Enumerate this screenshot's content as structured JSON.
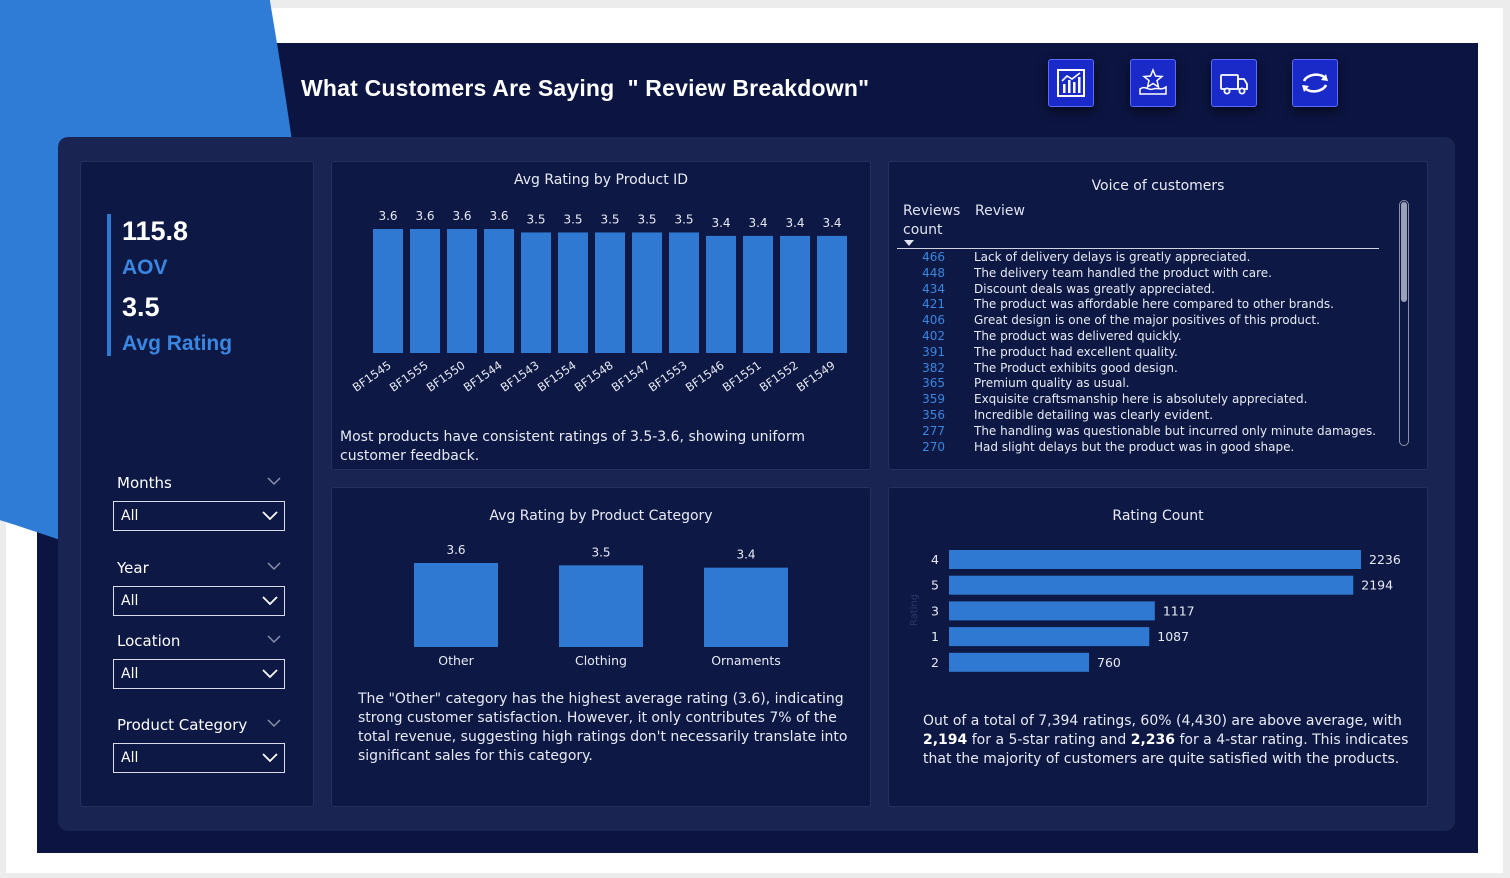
{
  "header": {
    "title": "What Customers Are Saying  \" Review Breakdown\"",
    "nav_icons": [
      "chart-icon",
      "rating-stars-icon",
      "delivery-truck-icon",
      "refresh-icon"
    ]
  },
  "colors": {
    "background": "#0c1541",
    "card": "#0d1844",
    "bar": "#2f79d3",
    "accent": "#3a86e0"
  },
  "kpis": {
    "aov_value": "115.8",
    "aov_label": "AOV",
    "rating_value": "3.5",
    "rating_label": "Avg Rating"
  },
  "slicers": [
    {
      "label": "Months",
      "value": "All"
    },
    {
      "label": "Year",
      "value": "All"
    },
    {
      "label": "Location",
      "value": "All"
    },
    {
      "label": "Product Category",
      "value": "All"
    }
  ],
  "chart_data": [
    {
      "type": "bar",
      "title": "Avg Rating by Product ID",
      "categories": [
        "BF1545",
        "BF1555",
        "BF1550",
        "BF1544",
        "BF1543",
        "BF1554",
        "BF1548",
        "BF1547",
        "BF1553",
        "BF1546",
        "BF1551",
        "BF1552",
        "BF1549"
      ],
      "values": [
        3.6,
        3.6,
        3.6,
        3.6,
        3.5,
        3.5,
        3.5,
        3.5,
        3.5,
        3.4,
        3.4,
        3.4,
        3.4
      ],
      "value_labels": [
        "3.6",
        "3.6",
        "3.6",
        "3.6",
        "3.5",
        "3.5",
        "3.5",
        "3.5",
        "3.5",
        "3.4",
        "3.4",
        "3.4",
        "3.4"
      ],
      "grid": false
    },
    {
      "type": "bar",
      "title": "Avg Rating by Product Category",
      "categories": [
        "Other",
        "Clothing",
        "Ornaments"
      ],
      "values": [
        3.6,
        3.5,
        3.4
      ],
      "value_labels": [
        "3.6",
        "3.5",
        "3.4"
      ],
      "grid": false
    },
    {
      "type": "bar",
      "orientation": "horizontal",
      "title": "Rating Count",
      "categories": [
        "4",
        "5",
        "3",
        "1",
        "2"
      ],
      "values": [
        2236,
        2194,
        1117,
        1087,
        760
      ],
      "value_labels": [
        "2236",
        "2194",
        "1117",
        "1087",
        "760"
      ],
      "ylabel": "Rating",
      "grid": false
    }
  ],
  "insights": {
    "product_id": "Most products have consistent ratings of 3.5-3.6, showing uniform customer feedback.",
    "category": "The \"Other\" category has the highest average rating (3.6), indicating strong customer satisfaction. However, it only contributes 7% of the total revenue, suggesting high ratings don't necessarily translate into significant sales for this category.",
    "rating_part1": "Out of a total of 7,394 ratings, 60% (4,430) are above average, with ",
    "rating_bold1": "2,194",
    "rating_part2": " for a 5-star rating and ",
    "rating_bold2": "2,236",
    "rating_part3": " for a 4-star rating. This indicates that the majority of customers are quite satisfied with the products."
  },
  "voc": {
    "title": "Voice of customers",
    "col_count": "Reviews count",
    "col_review": "Review",
    "rows": [
      {
        "count": "466",
        "review": "Lack of delivery delays is greatly appreciated."
      },
      {
        "count": "448",
        "review": "The delivery team handled the product with care."
      },
      {
        "count": "434",
        "review": "Discount deals was greatly appreciated."
      },
      {
        "count": "421",
        "review": "The product was affordable here compared to other brands."
      },
      {
        "count": "406",
        "review": "Great design is one of the major positives of this product."
      },
      {
        "count": "402",
        "review": "The product was delivered quickly."
      },
      {
        "count": "391",
        "review": "The product had excellent quality."
      },
      {
        "count": "382",
        "review": "The Product exhibits good design."
      },
      {
        "count": "365",
        "review": "Premium quality as usual."
      },
      {
        "count": "359",
        "review": "Exquisite craftsmanship here is absolutely appreciated."
      },
      {
        "count": "356",
        "review": "Incredible detailing was clearly evident."
      },
      {
        "count": "277",
        "review": "The handling was questionable but incurred only minute damages."
      },
      {
        "count": "270",
        "review": "Had slight delays but the product was in good shape."
      }
    ]
  }
}
